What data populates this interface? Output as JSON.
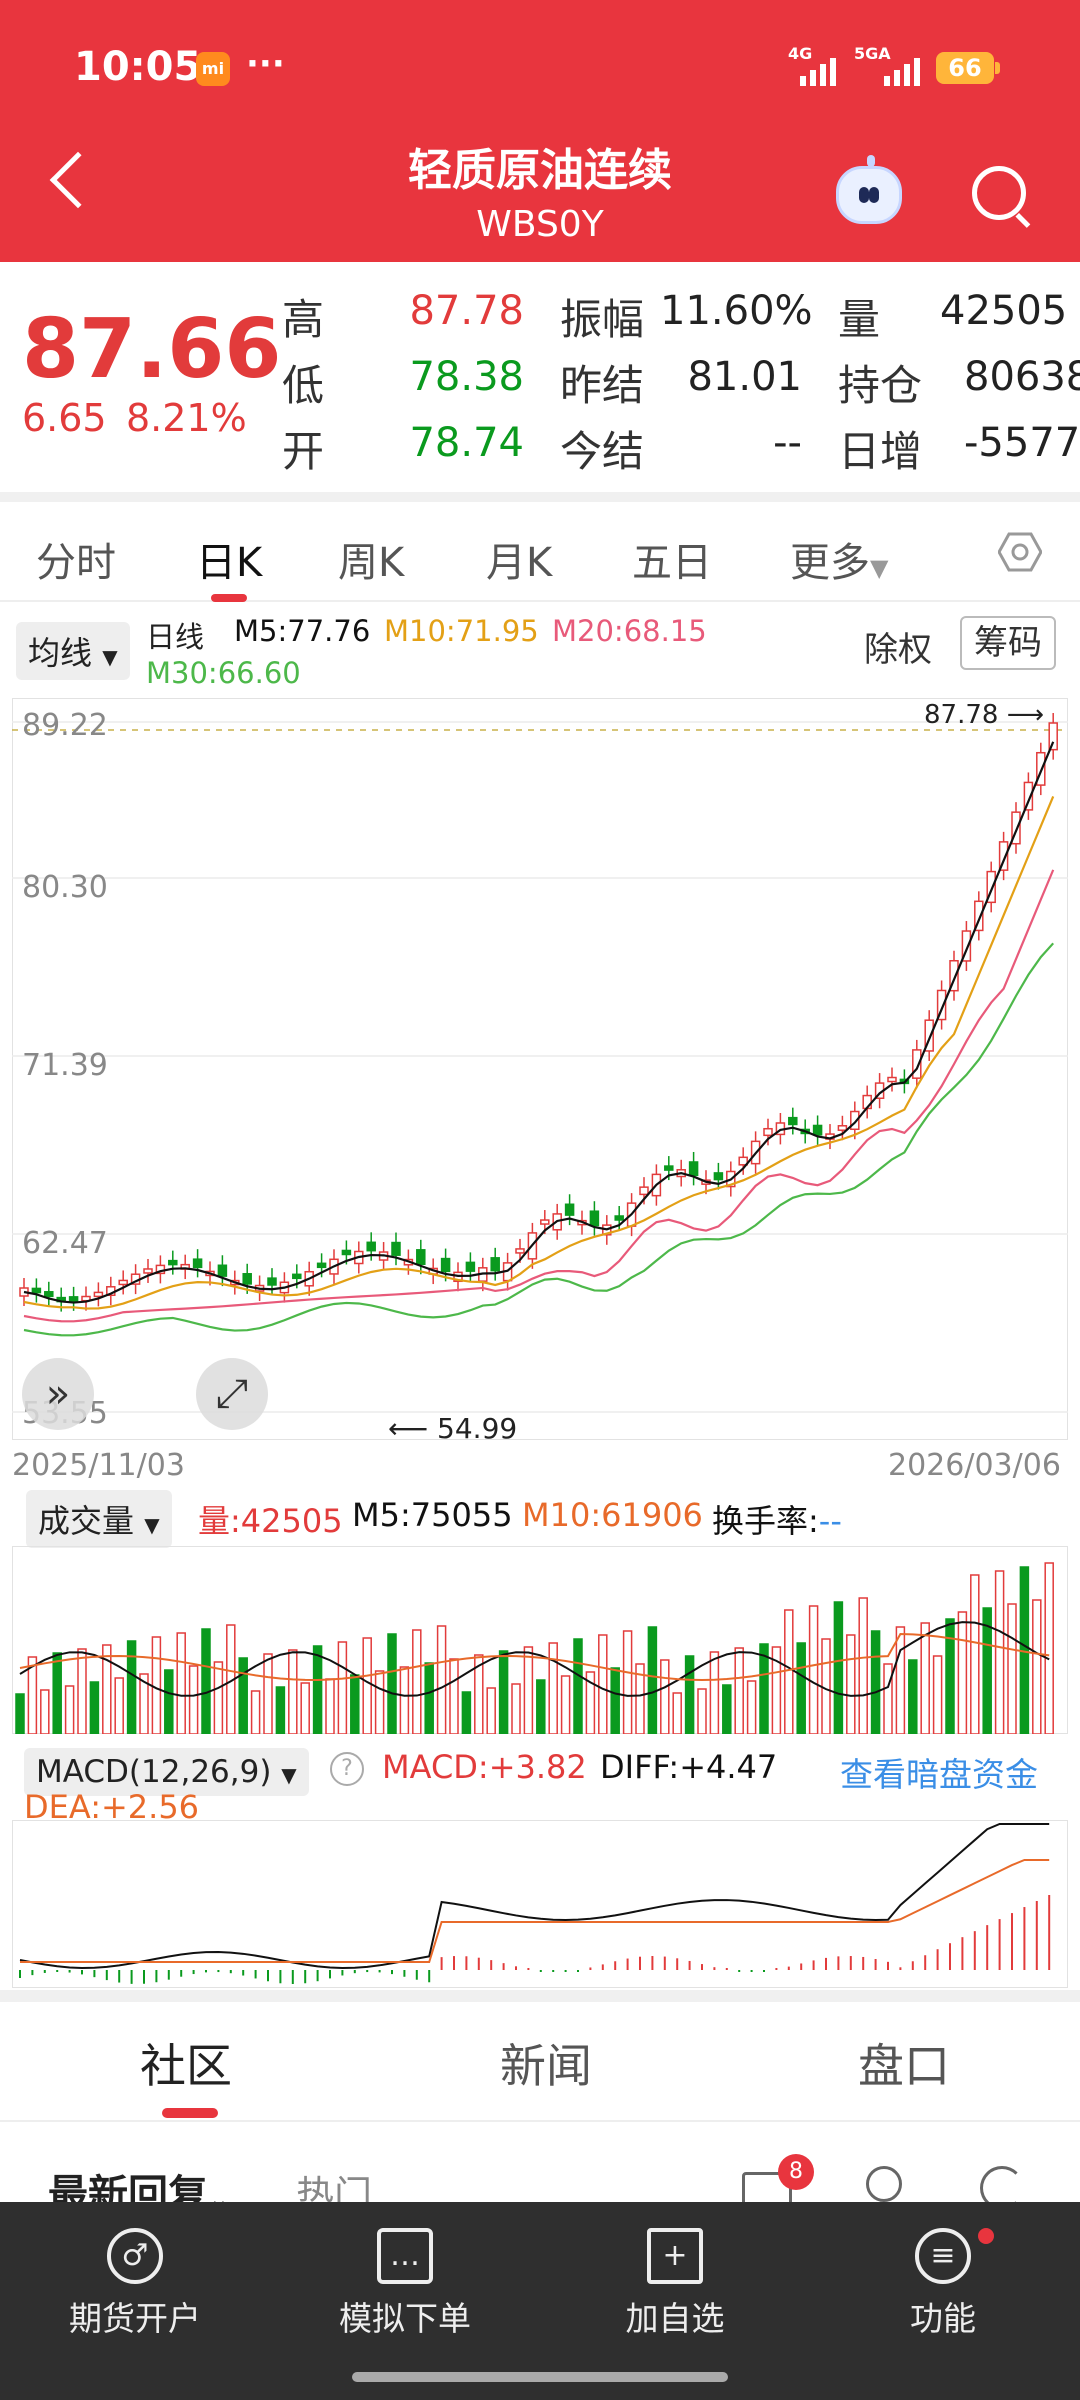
{
  "status_bar": {
    "time": "10:05",
    "app_badge": "mi",
    "dots": "···",
    "net1": "4G",
    "net2": "5GA",
    "battery": "66"
  },
  "header": {
    "title": "轻质原油连续",
    "code": "WBS0Y"
  },
  "quote": {
    "price": "87.66",
    "change": "6.65",
    "change_pct": "8.21%",
    "rows": [
      [
        {
          "label": "高",
          "value": "87.78",
          "color": "red"
        },
        {
          "label": "振幅",
          "value": "11.60%",
          "color": "dark"
        },
        {
          "label": "量",
          "value": "42505",
          "color": "dark"
        }
      ],
      [
        {
          "label": "低",
          "value": "78.38",
          "color": "green"
        },
        {
          "label": "昨结",
          "value": "81.01",
          "color": "dark"
        },
        {
          "label": "持仓",
          "value": "80638",
          "color": "dark"
        }
      ],
      [
        {
          "label": "开",
          "value": "78.74",
          "color": "green"
        },
        {
          "label": "今结",
          "value": "--",
          "color": "dark"
        },
        {
          "label": "日增",
          "value": "-5577",
          "color": "dark"
        }
      ]
    ]
  },
  "tabs": [
    "分时",
    "日K",
    "周K",
    "月K",
    "五日",
    "更多"
  ],
  "active_tab": "日K",
  "kline": {
    "ma_selector": "均线",
    "period": "日线",
    "m5": "M5:77.76",
    "m10": "M10:71.95",
    "m20": "M20:68.15",
    "m30": "M30:66.60",
    "adjust": "除权",
    "chips": "筹码",
    "y_labels": [
      "89.22",
      "80.30",
      "71.39",
      "62.47",
      "53.55"
    ],
    "high_marker": "87.78",
    "low_marker": "54.99",
    "date_start": "2025/11/03",
    "date_end": "2026/03/06"
  },
  "volume": {
    "selector": "成交量",
    "vol": "量:42505",
    "m5": "M5:75055",
    "m10": "M10:61906",
    "turnover_label": "换手率:",
    "turnover_value": "--"
  },
  "macd": {
    "selector": "MACD(12,26,9)",
    "help": "?",
    "macd": "MACD:+3.82",
    "diff": "DIFF:+4.47",
    "dea": "DEA:+2.56",
    "link": "查看暗盘资金"
  },
  "bottom_tabs": [
    "社区",
    "新闻",
    "盘口"
  ],
  "community": {
    "latest": "最新回复",
    "hot": "热门",
    "mail_badge": "8"
  },
  "nav": [
    "期货开户",
    "模拟下单",
    "加自选",
    "功能"
  ],
  "colors": {
    "brand_red": "#e8353e",
    "up": "#e23b3b",
    "down": "#0a9a1e",
    "ma5": "#111111",
    "ma10": "#e3a016",
    "ma20": "#e85a7a",
    "ma30": "#4db84a"
  }
}
